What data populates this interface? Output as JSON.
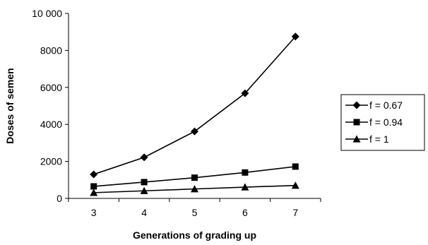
{
  "chart_data": {
    "type": "line",
    "title": "",
    "xlabel": "Generations of grading up",
    "ylabel": "Doses of semen",
    "x": [
      3,
      4,
      5,
      6,
      7
    ],
    "x_tick_labels": [
      "3",
      "4",
      "5",
      "6",
      "7"
    ],
    "ylim": [
      0,
      10000
    ],
    "y_ticks": [
      0,
      2000,
      4000,
      6000,
      8000,
      10000
    ],
    "y_tick_labels": [
      "0",
      "2000",
      "4000",
      "6000",
      "8000",
      "10 000"
    ],
    "grid": false,
    "legend_position": "right",
    "series": [
      {
        "name": "f = 0.67",
        "marker": "diamond",
        "values": [
          1300,
          2220,
          3620,
          5680,
          8750
        ]
      },
      {
        "name": "f = 0.94",
        "marker": "square",
        "values": [
          650,
          880,
          1120,
          1400,
          1720
        ]
      },
      {
        "name": "f = 1",
        "marker": "triangle",
        "values": [
          310,
          410,
          510,
          610,
          700
        ]
      }
    ],
    "line_color": "#000000"
  }
}
